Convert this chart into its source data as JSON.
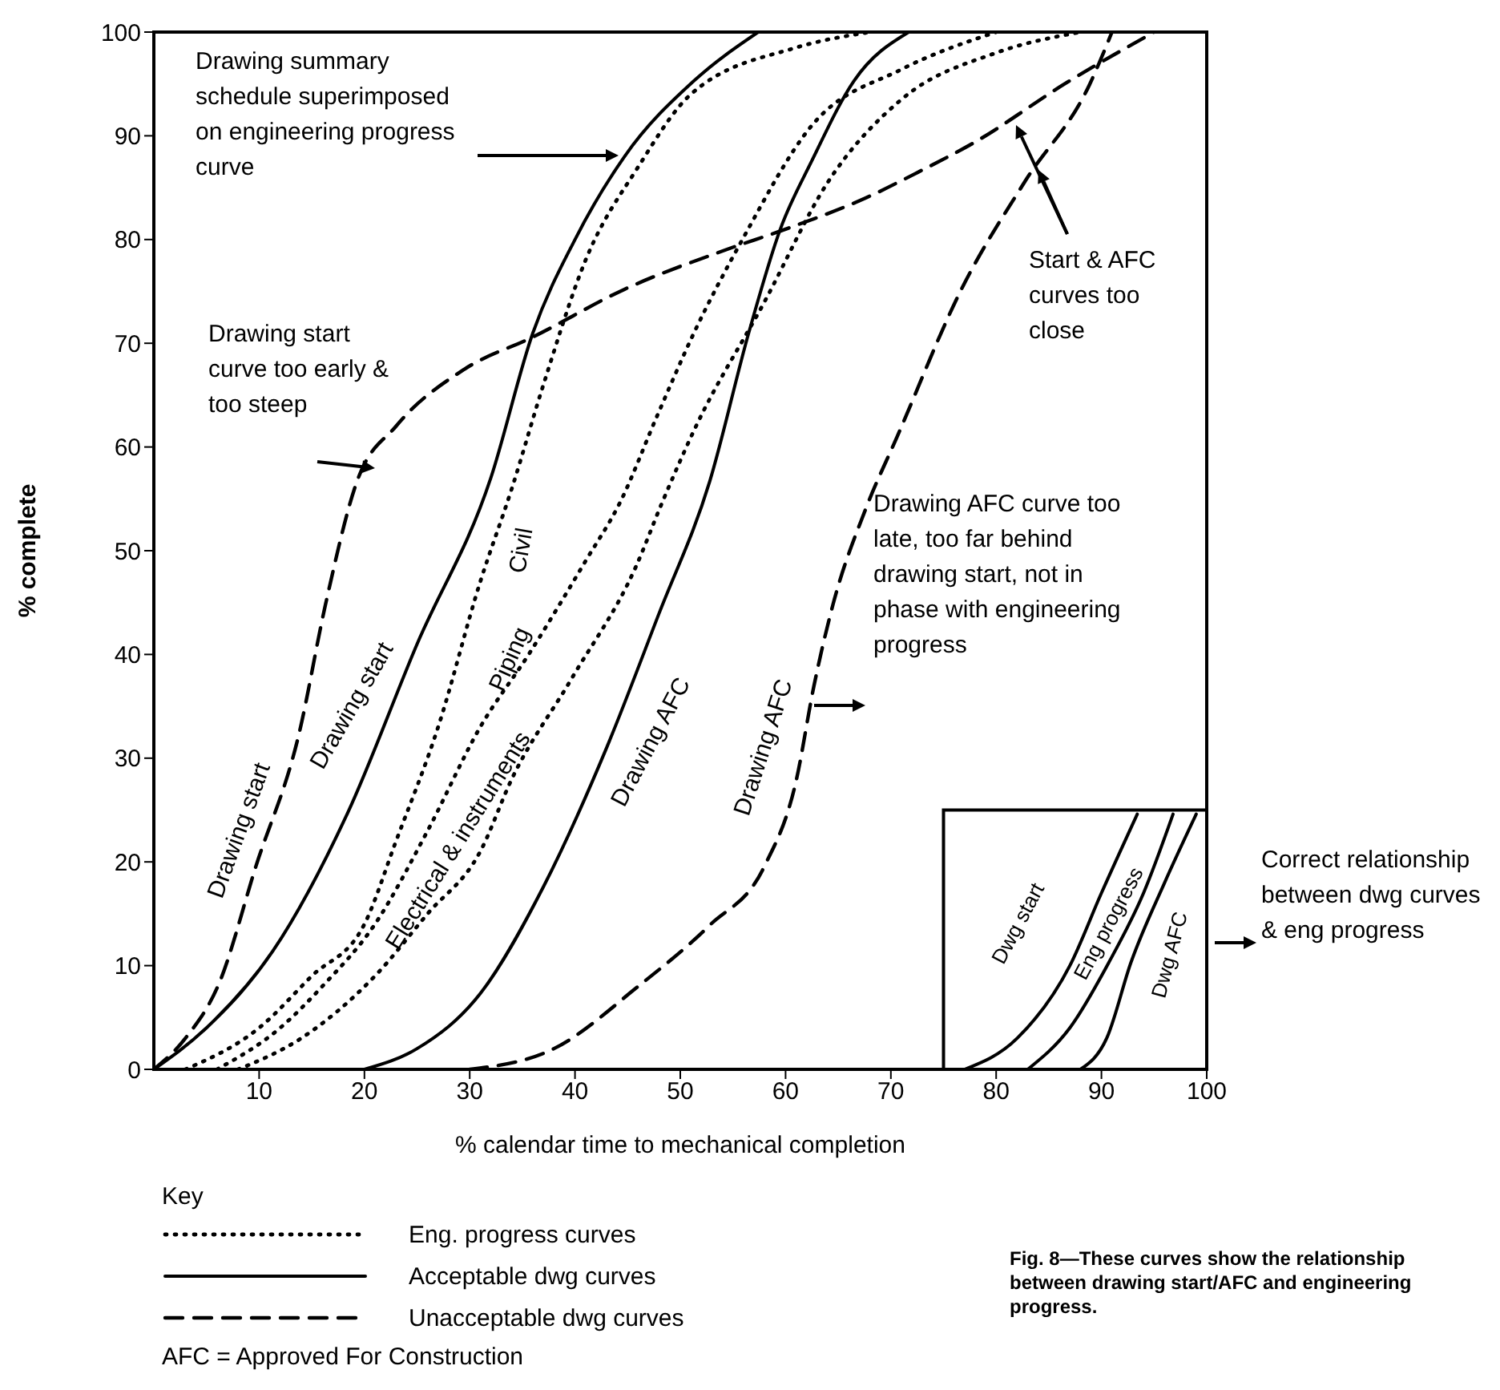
{
  "chart_data": {
    "type": "line",
    "xlabel": "% calendar time to mechanical completion",
    "ylabel": "% complete",
    "xlim": [
      0,
      100
    ],
    "xticks": [
      10,
      20,
      30,
      40,
      50,
      60,
      70,
      80,
      90,
      100
    ],
    "ylim": [
      0,
      100
    ],
    "yticks": [
      0,
      10,
      20,
      30,
      40,
      50,
      60,
      70,
      80,
      90,
      100
    ],
    "marker": "none",
    "series": [
      {
        "name": "Drawing start",
        "color": "#000000",
        "line_style": "dashed",
        "x": [
          0,
          3,
          6.2,
          9.7,
          13.8,
          16.3,
          19.3,
          23,
          29.5,
          36,
          44.7,
          54.3,
          60,
          67.6,
          72.6,
          78,
          86.5,
          95
        ],
        "values": [
          0,
          3,
          8.3,
          19.6,
          32.4,
          44.8,
          56.7,
          62,
          67.5,
          70.6,
          75.2,
          79,
          81,
          84,
          86.5,
          89.4,
          95,
          100
        ]
      },
      {
        "name": "Drawing start",
        "color": "#000000",
        "line_style": "solid",
        "x": [
          0,
          5,
          11.3,
          18.4,
          25,
          32,
          36,
          40,
          44.7,
          51.3,
          57.4
        ],
        "values": [
          0,
          4,
          11.4,
          24.7,
          41,
          57,
          71,
          80,
          88,
          95.3,
          100
        ]
      },
      {
        "name": "Civil",
        "color": "#000000",
        "line_style": "dotted",
        "x": [
          3,
          10,
          15,
          20,
          23,
          27,
          31,
          34,
          37,
          41,
          46,
          51,
          61,
          68
        ],
        "values": [
          0,
          4,
          9,
          14,
          22,
          33,
          47,
          56,
          66,
          78,
          87,
          94,
          98.5,
          100
        ]
      },
      {
        "name": "Piping",
        "color": "#000000",
        "line_style": "dotted",
        "x": [
          6,
          12,
          16,
          21,
          26,
          31,
          35.6,
          41,
          44.3,
          47.8,
          51.3,
          55.9,
          62.5,
          71,
          80
        ],
        "values": [
          0,
          4,
          8,
          14,
          23,
          33,
          40,
          49,
          54.7,
          63,
          71,
          80,
          91,
          96.4,
          100
        ]
      },
      {
        "name": "Electrical & instruments",
        "color": "#000000",
        "line_style": "dotted",
        "x": [
          8,
          14,
          21,
          26,
          31,
          34,
          39.7,
          45.8,
          48.3,
          51.4,
          58,
          64,
          71,
          80,
          88
        ],
        "values": [
          0,
          3,
          9,
          15,
          21,
          28,
          37.7,
          48.5,
          54.7,
          61.8,
          74,
          85.5,
          93.5,
          98,
          100
        ]
      },
      {
        "name": "Drawing AFC",
        "color": "#000000",
        "line_style": "solid",
        "x": [
          20,
          25,
          31,
          37,
          43,
          48,
          52.8,
          56.5,
          59.5,
          62.5,
          66.5,
          71.7
        ],
        "values": [
          0,
          2,
          7.3,
          17.6,
          31,
          44,
          56.7,
          71,
          81,
          87.6,
          95.3,
          100
        ]
      },
      {
        "name": "Drawing AFC",
        "color": "#000000",
        "line_style": "dashed",
        "x": [
          30,
          38,
          46,
          52.8,
          58,
          61,
          62.7,
          64.5,
          67.6,
          70.6,
          76.7,
          82.8,
          88.9,
          91
        ],
        "values": [
          0,
          2,
          8,
          13.9,
          19.6,
          27.8,
          37,
          44.8,
          54,
          61,
          75.2,
          85.7,
          95,
          100
        ]
      },
      {
        "name": "Dwg start",
        "color": "#000000",
        "line_style": "solid",
        "x": [
          77,
          82,
          87,
          90,
          93.4
        ],
        "values": [
          0,
          3,
          10,
          17,
          24.6
        ]
      },
      {
        "name": "Eng progress",
        "color": "#000000",
        "line_style": "solid",
        "x": [
          83,
          87,
          90.7,
          94,
          96.8
        ],
        "values": [
          0,
          4,
          10.3,
          17,
          24.6
        ]
      },
      {
        "name": "Dwg AFC",
        "color": "#000000",
        "line_style": "solid",
        "x": [
          88,
          90.5,
          92.8,
          96,
          99
        ],
        "values": [
          0,
          3,
          10.3,
          18,
          24.6
        ]
      }
    ],
    "annotations": [
      "Drawing summary schedule superimposed on engineering progress curve",
      "Drawing start curve too early & too steep",
      "Start & AFC curves too close",
      "Drawing AFC curve too late, too far behind drawing start, not in phase with engineering progress",
      "Correct relationship between dwg curves & eng progress",
      "Key",
      "Eng. progress curves",
      "Acceptable dwg curves",
      "Unacceptable dwg curves",
      "AFC = Approved For Construction",
      "Fig. 8—These curves show the relationship between drawing start/AFC and engineering progress."
    ]
  }
}
